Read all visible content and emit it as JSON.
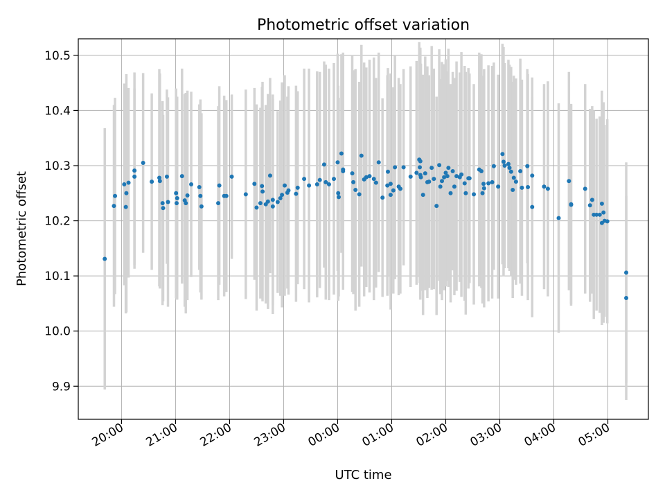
{
  "chart_data": {
    "type": "scatter",
    "title": "Photometric offset variation",
    "xlabel": "UTC time",
    "ylabel": "Photometric offset",
    "x_unit": "hours since 00:00 UTC",
    "xlim": [
      -4.8,
      5.75
    ],
    "ylim": [
      9.84,
      10.53
    ],
    "grid": true,
    "colors": {
      "points": "#1f77b4",
      "errorbars": "#d3d3d3",
      "grid": "#b0b0b0"
    },
    "x_ticks": [
      {
        "value": -4,
        "label": "20:00"
      },
      {
        "value": -3,
        "label": "21:00"
      },
      {
        "value": -2,
        "label": "22:00"
      },
      {
        "value": -1,
        "label": "23:00"
      },
      {
        "value": 0,
        "label": "00:00"
      },
      {
        "value": 1,
        "label": "01:00"
      },
      {
        "value": 2,
        "label": "02:00"
      },
      {
        "value": 3,
        "label": "03:00"
      },
      {
        "value": 4,
        "label": "04:00"
      },
      {
        "value": 5,
        "label": "05:00"
      }
    ],
    "y_ticks": [
      {
        "value": 9.9,
        "label": "9.9"
      },
      {
        "value": 10.0,
        "label": "10.0"
      },
      {
        "value": 10.1,
        "label": "10.1"
      },
      {
        "value": 10.2,
        "label": "10.2"
      },
      {
        "value": 10.3,
        "label": "10.3"
      },
      {
        "value": 10.4,
        "label": "10.4"
      },
      {
        "value": 10.5,
        "label": "10.5"
      }
    ],
    "points": [
      [
        -4.31,
        10.131,
        0.237
      ],
      [
        -4.14,
        10.227,
        0.183
      ],
      [
        -4.12,
        10.245,
        0.178
      ],
      [
        -3.95,
        10.266,
        0.183
      ],
      [
        -3.92,
        10.225,
        0.193
      ],
      [
        -3.91,
        10.25,
        0.216
      ],
      [
        -3.87,
        10.269,
        0.172
      ],
      [
        -3.76,
        10.291,
        0.178
      ],
      [
        -3.76,
        10.28,
        0.16
      ],
      [
        -3.6,
        10.305,
        0.163
      ],
      [
        -3.44,
        10.271,
        0.16
      ],
      [
        -3.3,
        10.278,
        0.197
      ],
      [
        -3.29,
        10.272,
        0.195
      ],
      [
        -3.24,
        10.232,
        0.185
      ],
      [
        -3.23,
        10.223,
        0.169
      ],
      [
        -3.16,
        10.28,
        0.158
      ],
      [
        -3.14,
        10.234,
        0.19
      ],
      [
        -2.99,
        10.25,
        0.19
      ],
      [
        -2.98,
        10.232,
        0.175
      ],
      [
        -2.97,
        10.241,
        0.184
      ],
      [
        -2.88,
        10.281,
        0.195
      ],
      [
        -2.83,
        10.237,
        0.193
      ],
      [
        -2.81,
        10.232,
        0.2
      ],
      [
        -2.78,
        10.246,
        0.19
      ],
      [
        -2.71,
        10.266,
        0.168
      ],
      [
        -2.56,
        10.261,
        0.15
      ],
      [
        -2.54,
        10.245,
        0.175
      ],
      [
        -2.52,
        10.226,
        0.169
      ],
      [
        -2.21,
        10.232,
        0.176
      ],
      [
        -2.19,
        10.264,
        0.18
      ],
      [
        -2.1,
        10.245,
        0.182
      ],
      [
        -2.06,
        10.245,
        0.174
      ],
      [
        -1.96,
        10.28,
        0.149
      ],
      [
        -1.7,
        10.248,
        0.19
      ],
      [
        -1.54,
        10.267,
        0.174
      ],
      [
        -1.5,
        10.224,
        0.187
      ],
      [
        -1.43,
        10.232,
        0.173
      ],
      [
        -1.4,
        10.263,
        0.18
      ],
      [
        -1.39,
        10.253,
        0.199
      ],
      [
        -1.33,
        10.23,
        0.18
      ],
      [
        -1.29,
        10.235,
        0.195
      ],
      [
        -1.25,
        10.282,
        0.177
      ],
      [
        -1.2,
        10.238,
        0.191
      ],
      [
        -1.2,
        10.226,
        0.195
      ],
      [
        -1.11,
        10.234,
        0.165
      ],
      [
        -1.06,
        10.241,
        0.177
      ],
      [
        -1.03,
        10.247,
        0.204
      ],
      [
        -0.98,
        10.264,
        0.2
      ],
      [
        -0.93,
        10.251,
        0.174
      ],
      [
        -0.91,
        10.255,
        0.189
      ],
      [
        -0.77,
        10.249,
        0.196
      ],
      [
        -0.74,
        10.26,
        0.175
      ],
      [
        -0.62,
        10.276,
        0.2
      ],
      [
        -0.53,
        10.264,
        0.212
      ],
      [
        -0.38,
        10.266,
        0.205
      ],
      [
        -0.33,
        10.274,
        0.196
      ],
      [
        -0.25,
        10.302,
        0.187
      ],
      [
        -0.22,
        10.27,
        0.213
      ],
      [
        -0.16,
        10.266,
        0.21
      ],
      [
        -0.07,
        10.276,
        0.21
      ],
      [
        0.0,
        10.306,
        0.197
      ],
      [
        0.01,
        10.25,
        0.195
      ],
      [
        0.02,
        10.243,
        0.18
      ],
      [
        0.07,
        10.322,
        0.18
      ],
      [
        0.1,
        10.293,
        0.199
      ],
      [
        0.1,
        10.29,
        0.215
      ],
      [
        0.27,
        10.286,
        0.215
      ],
      [
        0.29,
        10.27,
        0.203
      ],
      [
        0.33,
        10.256,
        0.219
      ],
      [
        0.4,
        10.248,
        0.204
      ],
      [
        0.44,
        10.318,
        0.201
      ],
      [
        0.49,
        10.275,
        0.212
      ],
      [
        0.53,
        10.279,
        0.199
      ],
      [
        0.59,
        10.281,
        0.211
      ],
      [
        0.67,
        10.276,
        0.22
      ],
      [
        0.71,
        10.269,
        0.19
      ],
      [
        0.76,
        10.306,
        0.199
      ],
      [
        0.83,
        10.242,
        0.18
      ],
      [
        0.92,
        10.264,
        0.2
      ],
      [
        0.93,
        10.289,
        0.188
      ],
      [
        0.98,
        10.247,
        0.208
      ],
      [
        0.98,
        10.267,
        0.2
      ],
      [
        1.03,
        10.255,
        0.187
      ],
      [
        1.06,
        10.297,
        0.203
      ],
      [
        1.13,
        10.262,
        0.197
      ],
      [
        1.16,
        10.258,
        0.19
      ],
      [
        1.22,
        10.297,
        0.178
      ],
      [
        1.35,
        10.28,
        0.2
      ],
      [
        1.46,
        10.287,
        0.203
      ],
      [
        1.51,
        10.311,
        0.213
      ],
      [
        1.52,
        10.297,
        0.21
      ],
      [
        1.53,
        10.283,
        0.226
      ],
      [
        1.53,
        10.308,
        0.206
      ],
      [
        1.54,
        10.279,
        0.206
      ],
      [
        1.58,
        10.247,
        0.218
      ],
      [
        1.62,
        10.286,
        0.212
      ],
      [
        1.66,
        10.27,
        0.21
      ],
      [
        1.69,
        10.271,
        0.193
      ],
      [
        1.74,
        10.296,
        0.221
      ],
      [
        1.78,
        10.276,
        0.2
      ],
      [
        1.83,
        10.227,
        0.198
      ],
      [
        1.88,
        10.301,
        0.21
      ],
      [
        1.9,
        10.262,
        0.195
      ],
      [
        1.93,
        10.272,
        0.216
      ],
      [
        1.97,
        10.279,
        0.205
      ],
      [
        2.0,
        10.287,
        0.206
      ],
      [
        2.03,
        10.281,
        0.19
      ],
      [
        2.05,
        10.296,
        0.216
      ],
      [
        2.09,
        10.25,
        0.198
      ],
      [
        2.13,
        10.29,
        0.18
      ],
      [
        2.16,
        10.262,
        0.197
      ],
      [
        2.2,
        10.281,
        0.208
      ],
      [
        2.26,
        10.279,
        0.19
      ],
      [
        2.29,
        10.284,
        0.222
      ],
      [
        2.35,
        10.268,
        0.213
      ],
      [
        2.37,
        10.25,
        0.22
      ],
      [
        2.42,
        10.277,
        0.2
      ],
      [
        2.44,
        10.277,
        0.19
      ],
      [
        2.52,
        10.248,
        0.2
      ],
      [
        2.62,
        10.293,
        0.212
      ],
      [
        2.66,
        10.29,
        0.212
      ],
      [
        2.68,
        10.25,
        0.2
      ],
      [
        2.7,
        10.267,
        0.196
      ],
      [
        2.71,
        10.259,
        0.216
      ],
      [
        2.79,
        10.268,
        0.214
      ],
      [
        2.86,
        10.27,
        0.211
      ],
      [
        2.89,
        10.299,
        0.188
      ],
      [
        2.97,
        10.262,
        0.203
      ],
      [
        3.05,
        10.321,
        0.2
      ],
      [
        3.07,
        10.307,
        0.208
      ],
      [
        3.09,
        10.3,
        0.186
      ],
      [
        3.16,
        10.303,
        0.189
      ],
      [
        3.18,
        10.296,
        0.187
      ],
      [
        3.21,
        10.289,
        0.19
      ],
      [
        3.24,
        10.256,
        0.196
      ],
      [
        3.26,
        10.278,
        0.185
      ],
      [
        3.3,
        10.271,
        0.187
      ],
      [
        3.38,
        10.29,
        0.204
      ],
      [
        3.41,
        10.26,
        0.196
      ],
      [
        3.51,
        10.299,
        0.176
      ],
      [
        3.52,
        10.261,
        0.205
      ],
      [
        3.6,
        10.225,
        0.2
      ],
      [
        3.6,
        10.282,
        0.178
      ],
      [
        3.82,
        10.262,
        0.186
      ],
      [
        3.89,
        10.258,
        0.195
      ],
      [
        4.09,
        10.205,
        0.208
      ],
      [
        4.28,
        10.272,
        0.198
      ],
      [
        4.32,
        10.23,
        0.181
      ],
      [
        4.32,
        10.229,
        0.183
      ],
      [
        4.58,
        10.258,
        0.19
      ],
      [
        4.67,
        10.228,
        0.175
      ],
      [
        4.71,
        10.238,
        0.17
      ],
      [
        4.74,
        10.211,
        0.189
      ],
      [
        4.79,
        10.211,
        0.174
      ],
      [
        4.85,
        10.211,
        0.178
      ],
      [
        4.89,
        10.231,
        0.205
      ],
      [
        4.89,
        10.196,
        0.185
      ],
      [
        4.92,
        10.215,
        0.2
      ],
      [
        4.94,
        10.2,
        0.174
      ],
      [
        4.99,
        10.199,
        0.185
      ],
      [
        5.34,
        10.106,
        0.2
      ],
      [
        5.34,
        10.06,
        0.185
      ]
    ]
  }
}
